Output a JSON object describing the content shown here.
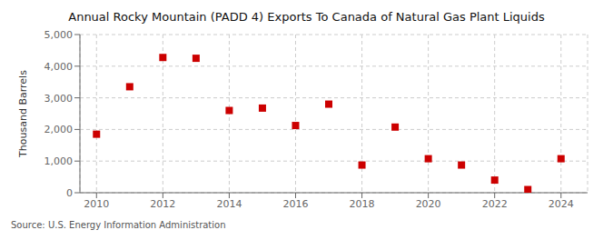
{
  "chart_data": {
    "type": "scatter",
    "title": "Annual Rocky Mountain (PADD 4) Exports To Canada of Natural Gas Plant Liquids",
    "y_label": "Thousand Barrels",
    "annotations": [
      "Source: U.S. Energy Information Administration"
    ],
    "x": [
      2010,
      2011,
      2012,
      2013,
      2014,
      2015,
      2016,
      2017,
      2018,
      2019,
      2020,
      2021,
      2022,
      2023,
      2024
    ],
    "values": [
      1850,
      3350,
      4275,
      4250,
      2600,
      2675,
      2125,
      2800,
      875,
      2075,
      1075,
      875,
      400,
      100,
      1075
    ],
    "color": "#cc0000",
    "marker": "square",
    "xlim": [
      2009.5,
      2024.8
    ],
    "xticks": [
      2010,
      2012,
      2014,
      2016,
      2018,
      2020,
      2022,
      2024
    ],
    "ylim": [
      0,
      5000
    ],
    "yticks": [
      0,
      {
        "value": 1000,
        "label": "1,000"
      },
      {
        "value": 2000,
        "label": "2,000"
      },
      {
        "value": 3000,
        "label": "3,000"
      },
      {
        "value": 4000,
        "label": "4,000"
      },
      {
        "value": 5000,
        "label": "5,000"
      }
    ],
    "grid": true
  }
}
